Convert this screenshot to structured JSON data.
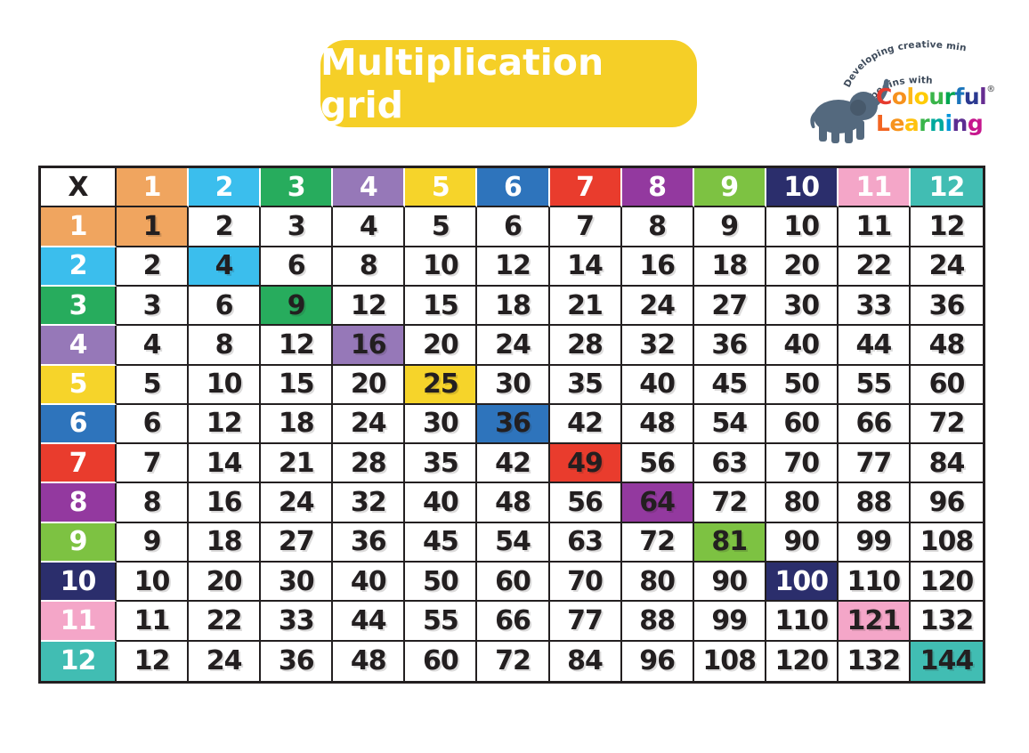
{
  "page": {
    "background": "#FFFFFF"
  },
  "title": {
    "label": "Multiplication grid",
    "bg_color": "#F5CF27",
    "text_color": "#FFFFFF"
  },
  "logo": {
    "tagline_arc1": "Developing creative minds",
    "tagline_arc2": "begins with",
    "tagline_color": "#3D4A5A",
    "elephant_color": "#54697E",
    "elephant_ear_color": "#47596B",
    "brand_word1": "Colourful",
    "brand_word1_colors": [
      "#E63A2E",
      "#F6911E",
      "#FDB71A",
      "#FFCB05",
      "#3AB54A",
      "#00A651",
      "#1B75BB",
      "#2B3990",
      "#662D91"
    ],
    "registered_mark": "®",
    "registered_mark_color": "#6D6E71",
    "brand_word2": "Learning",
    "brand_word2_colors": [
      "#F26522",
      "#F7941D",
      "#FFC20E",
      "#39B54A",
      "#00A99D",
      "#0095DA",
      "#5C2D91",
      "#C6168D"
    ]
  },
  "grid": {
    "corner_label": "X",
    "factors": [
      "1",
      "2",
      "3",
      "4",
      "5",
      "6",
      "7",
      "8",
      "9",
      "10",
      "11",
      "12"
    ],
    "header_colors": [
      "#F0A55F",
      "#3BBEED",
      "#27AC5D",
      "#9678B8",
      "#F6D42A",
      "#2E74BC",
      "#E93C2D",
      "#93399F",
      "#7DC242",
      "#2B2E6C",
      "#F4A6C8",
      "#41BDB3"
    ],
    "header_text_color": "#FFFFFF",
    "number_color": "#231F20",
    "border_color": "#231F20",
    "diagonal_white_text_factor": "10",
    "rows": [
      [
        "1",
        "2",
        "3",
        "4",
        "5",
        "6",
        "7",
        "8",
        "9",
        "10",
        "11",
        "12"
      ],
      [
        "2",
        "4",
        "6",
        "8",
        "10",
        "12",
        "14",
        "16",
        "18",
        "20",
        "22",
        "24"
      ],
      [
        "3",
        "6",
        "9",
        "12",
        "15",
        "18",
        "21",
        "24",
        "27",
        "30",
        "33",
        "36"
      ],
      [
        "4",
        "8",
        "12",
        "16",
        "20",
        "24",
        "28",
        "32",
        "36",
        "40",
        "44",
        "48"
      ],
      [
        "5",
        "10",
        "15",
        "20",
        "25",
        "30",
        "35",
        "40",
        "45",
        "50",
        "55",
        "60"
      ],
      [
        "6",
        "12",
        "18",
        "24",
        "30",
        "36",
        "42",
        "48",
        "54",
        "60",
        "66",
        "72"
      ],
      [
        "7",
        "14",
        "21",
        "28",
        "35",
        "42",
        "49",
        "56",
        "63",
        "70",
        "77",
        "84"
      ],
      [
        "8",
        "16",
        "24",
        "32",
        "40",
        "48",
        "56",
        "64",
        "72",
        "80",
        "88",
        "96"
      ],
      [
        "9",
        "18",
        "27",
        "36",
        "45",
        "54",
        "63",
        "72",
        "81",
        "90",
        "99",
        "108"
      ],
      [
        "10",
        "20",
        "30",
        "40",
        "50",
        "60",
        "70",
        "80",
        "90",
        "100",
        "110",
        "120"
      ],
      [
        "11",
        "22",
        "33",
        "44",
        "55",
        "66",
        "77",
        "88",
        "99",
        "110",
        "121",
        "132"
      ],
      [
        "12",
        "24",
        "36",
        "48",
        "60",
        "72",
        "84",
        "96",
        "108",
        "120",
        "132",
        "144"
      ]
    ]
  }
}
